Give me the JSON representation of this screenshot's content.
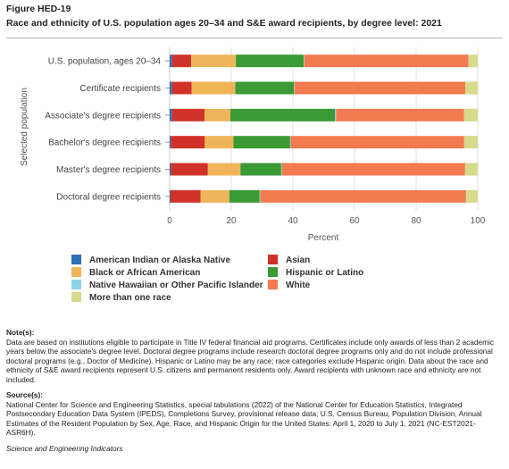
{
  "figure": {
    "label": "Figure HED-19",
    "title": "Race and ethnicity of U.S. population ages 20–34 and S&E award recipients, by degree level: 2021"
  },
  "chart_data": {
    "type": "bar",
    "orientation": "horizontal",
    "stacked": true,
    "xlabel": "Percent",
    "ylabel": "Selected population",
    "xlim": [
      0,
      100
    ],
    "x_ticks": [
      "0",
      "20",
      "40",
      "60",
      "80",
      "100"
    ],
    "grid": true,
    "legend_position": "bottom",
    "categories": [
      "U.S. population, ages 20–34",
      "Certificate recipients",
      "Associate's degree recipients",
      "Bachelor's degree recipients",
      "Master's degree recipients",
      "Doctoral degree recipients"
    ],
    "series": [
      {
        "name": "American Indian or Alaska Native",
        "color": "#2f6fb3",
        "values": [
          0.8,
          0.8,
          0.8,
          0.4,
          0.4,
          0.3
        ]
      },
      {
        "name": "Asian",
        "color": "#d0322a",
        "values": [
          6.2,
          6.3,
          10.5,
          11.0,
          12.0,
          9.7
        ]
      },
      {
        "name": "Black or African American",
        "color": "#f0b55b",
        "values": [
          14.5,
          14.2,
          8.4,
          9.3,
          10.6,
          9.4
        ]
      },
      {
        "name": "Hispanic or Latino",
        "color": "#3a9a36",
        "values": [
          22.0,
          19.0,
          34.0,
          18.4,
          13.2,
          9.8
        ]
      },
      {
        "name": "Native Hawaiian or Other Pacific Islander",
        "color": "#8fd3e8",
        "values": [
          0.2,
          0.2,
          0.3,
          0.2,
          0.2,
          0.2
        ]
      },
      {
        "name": "White",
        "color": "#f47a50",
        "values": [
          53.3,
          55.5,
          41.5,
          56.3,
          59.5,
          66.8
        ]
      },
      {
        "name": "More than one race",
        "color": "#d7d98b",
        "values": [
          3.0,
          4.0,
          4.5,
          4.4,
          4.1,
          3.8
        ]
      }
    ]
  },
  "notes": {
    "heading": "Note(s):",
    "text": "Data are based on institutions eligible to participate in Title IV federal financial aid programs. Certificates include only awards of less than 2 academic years below the associate's degree level. Doctoral degree programs include research doctoral degree programs only and do not include professional doctoral programs (e.g., Doctor of Medicine). Hispanic or Latino may be any race; race categories exclude Hispanic origin. Data about the race and ethnicity of S&E award recipients represent U.S. citizens and permanent residents only. Award recipients with unknown race and ethnicity are not included."
  },
  "sources": {
    "heading": "Source(s):",
    "text": "National Center for Science and Engineering Statistics, special tabulations (2022) of the National Center for Education Statistics, Integrated Postsecondary Education Data System (IPEDS), Completions Survey, provisional release data; U.S. Census Bureau, Population Division, Annual Estimates of the Resident Population by Sex, Age, Race, and Hispanic Origin for the United States: April 1, 2020 to July 1, 2021 (NC-EST2021-ASR6H)."
  },
  "footer": "Science and Engineering Indicators"
}
